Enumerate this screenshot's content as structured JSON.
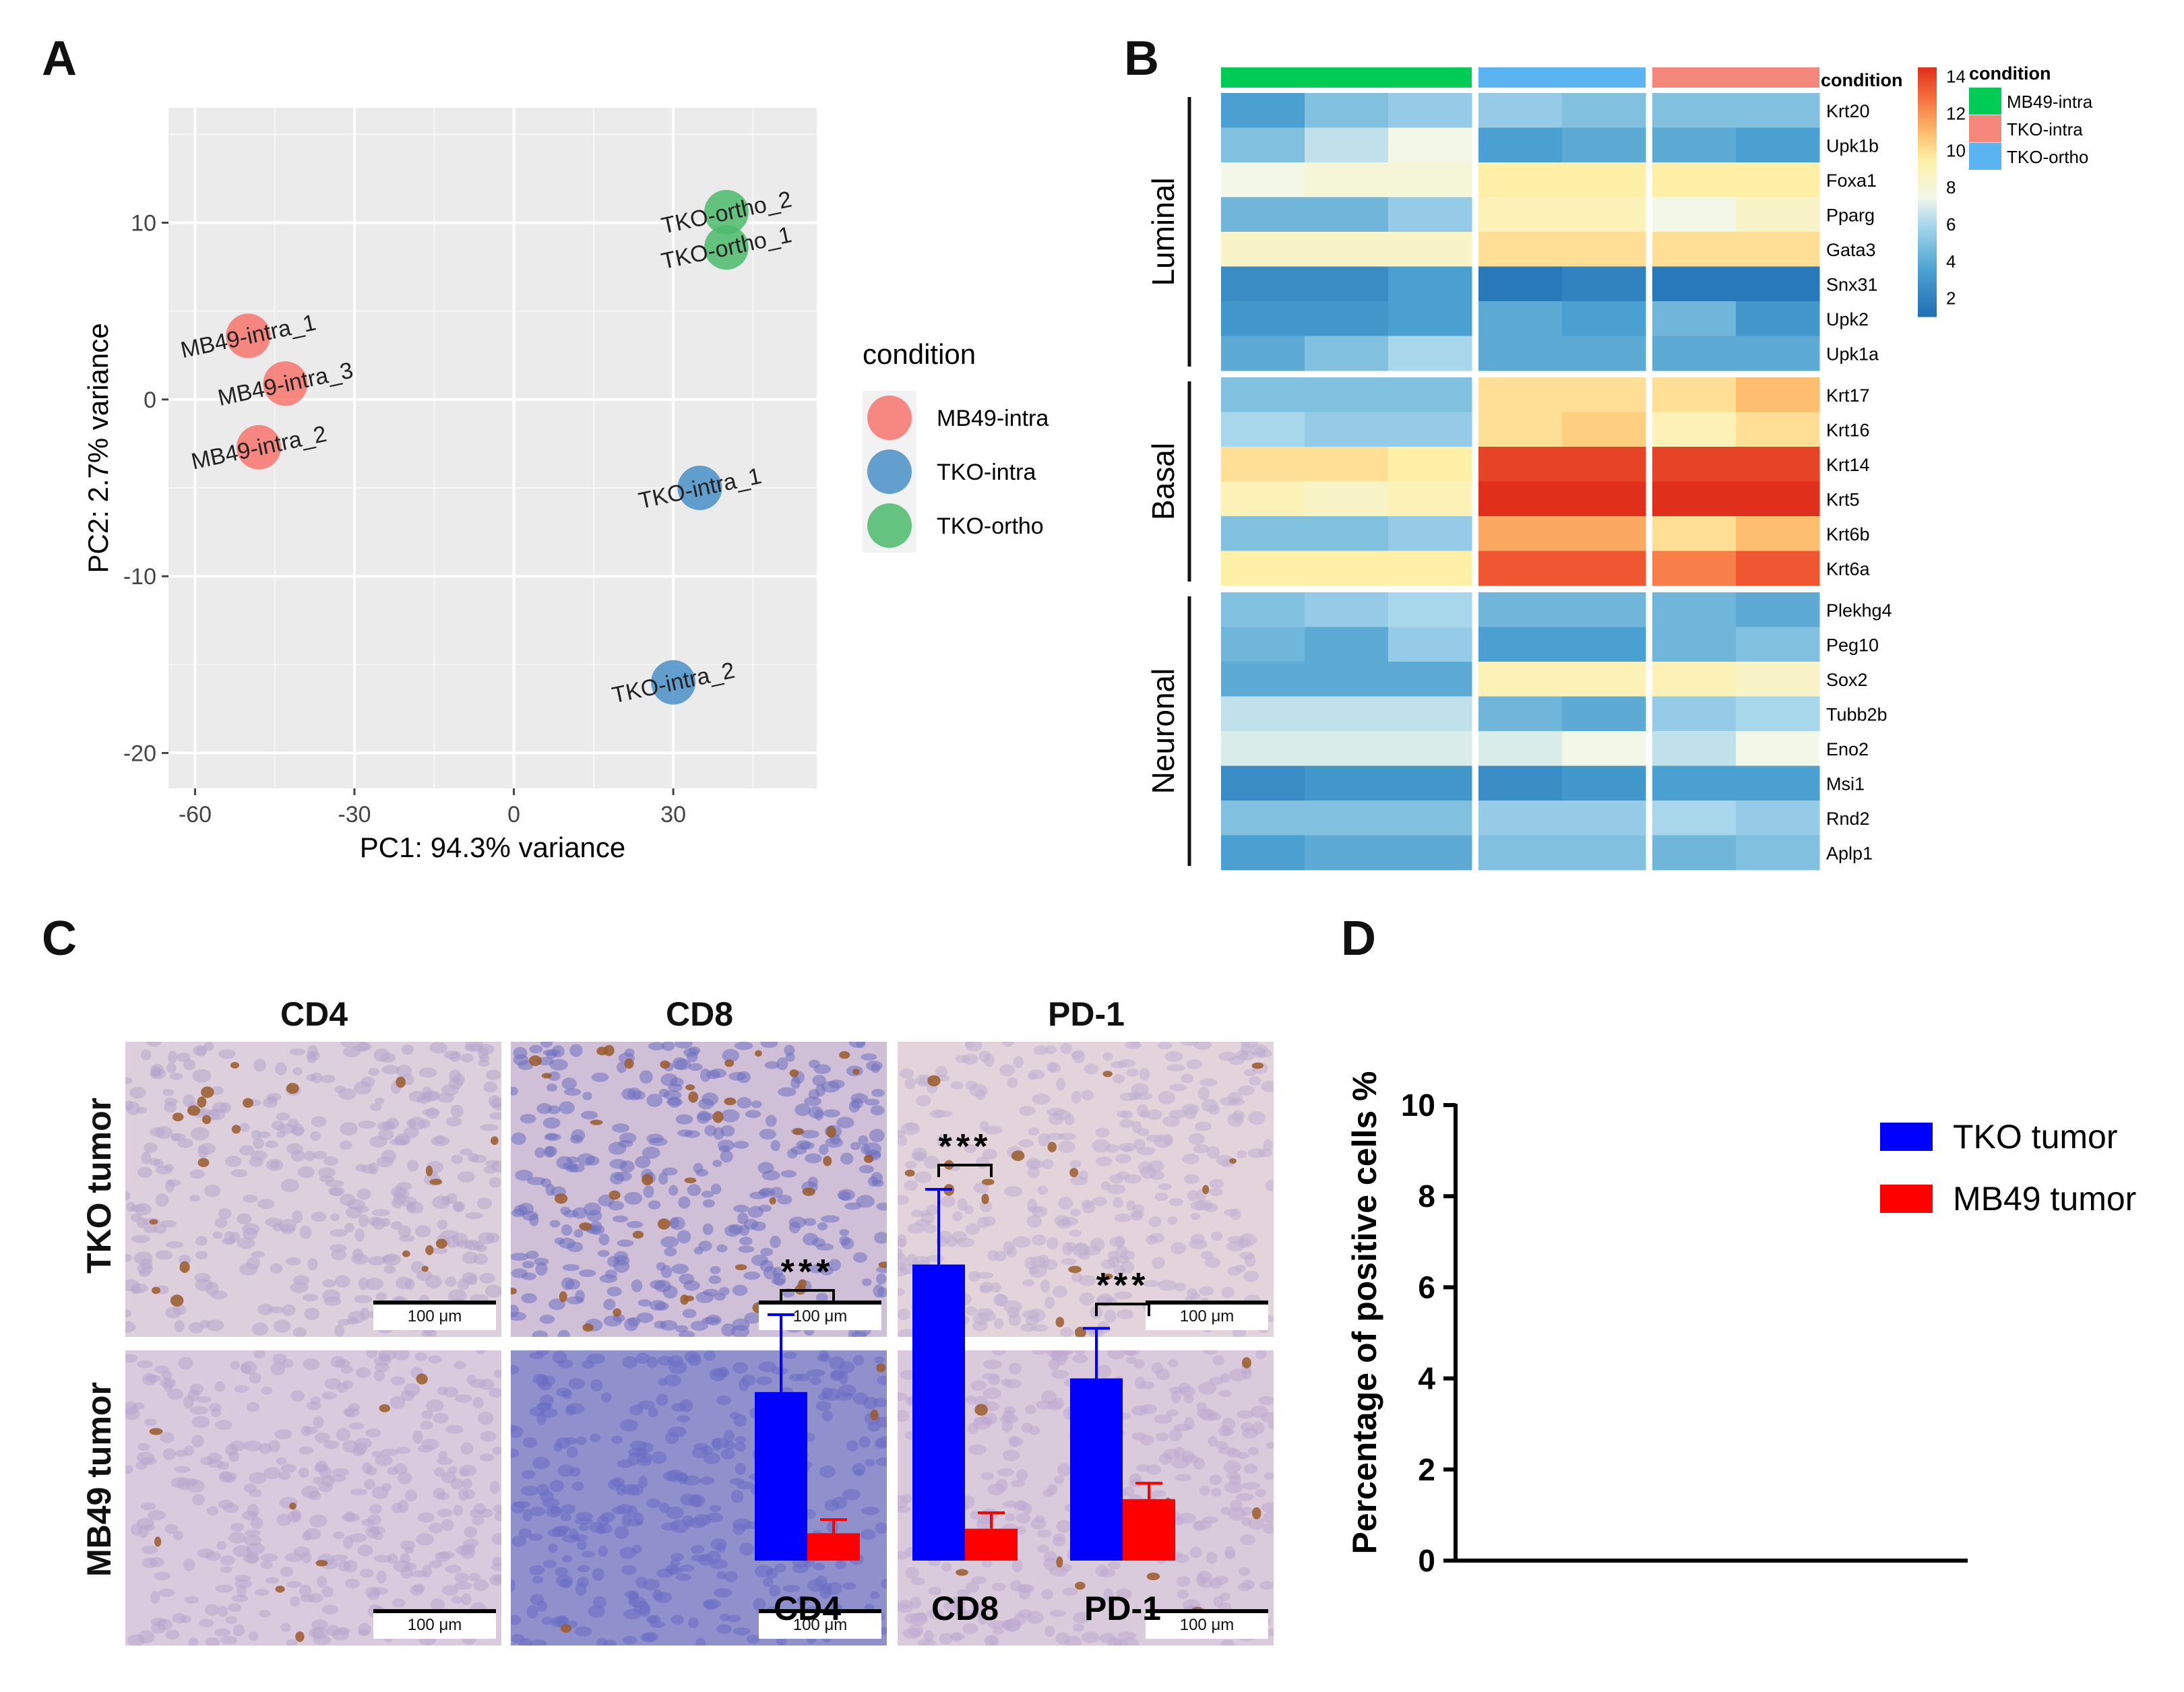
{
  "panels": {
    "a": "A",
    "b": "B",
    "c": "C",
    "d": "D"
  },
  "chart_data": [
    {
      "type": "scatter",
      "panel": "A",
      "xlabel": "PC1: 94.3% variance",
      "ylabel": "PC2: 2.7% variance",
      "xlim": [
        -65,
        57
      ],
      "ylim": [
        -22,
        16.5
      ],
      "xticks": [
        -60,
        -30,
        0,
        30
      ],
      "yticks": [
        10,
        0,
        -10,
        -20
      ],
      "grid": true,
      "legend_title": "condition",
      "legend": [
        {
          "label": "MB49-intra",
          "color": "#f8766d"
        },
        {
          "label": "TKO-intra",
          "color": "#4a90c8"
        },
        {
          "label": "TKO-ortho",
          "color": "#4cbb6c"
        }
      ],
      "points": [
        {
          "label": "MB49-intra_1",
          "group": "MB49-intra",
          "x": -50,
          "y": 3.6
        },
        {
          "label": "MB49-intra_3",
          "group": "MB49-intra",
          "x": -43,
          "y": 0.9
        },
        {
          "label": "MB49-intra_2",
          "group": "MB49-intra",
          "x": -48,
          "y": -2.7
        },
        {
          "label": "TKO-ortho_2",
          "group": "TKO-ortho",
          "x": 40,
          "y": 10.6
        },
        {
          "label": "TKO-ortho_1",
          "group": "TKO-ortho",
          "x": 40,
          "y": 8.6
        },
        {
          "label": "TKO-intra_1",
          "group": "TKO-intra",
          "x": 35,
          "y": -5
        },
        {
          "label": "TKO-intra_2",
          "group": "TKO-intra",
          "x": 30,
          "y": -16
        }
      ]
    },
    {
      "type": "heatmap",
      "panel": "B",
      "colorbar": {
        "min": 1,
        "max": 14.5,
        "ticks": [
          14,
          12,
          10,
          8,
          6,
          4,
          2
        ]
      },
      "annotation_title": "condition",
      "column_groups": [
        {
          "name": "MB49-intra",
          "color": "#00cc55",
          "n": 3
        },
        {
          "name": "TKO-ortho",
          "color": "#5ab4f2",
          "n": 2
        },
        {
          "name": "TKO-intra",
          "color": "#f4867a",
          "n": 2
        }
      ],
      "legend": [
        {
          "label": "MB49-intra",
          "color": "#00cc55"
        },
        {
          "label": "TKO-intra",
          "color": "#f4867a"
        },
        {
          "label": "TKO-ortho",
          "color": "#5ab4f2"
        }
      ],
      "row_groups": [
        {
          "name": "Luminal",
          "rows": [
            {
              "gene": "Krt20",
              "values": [
                3.5,
                5,
                5.5,
                5.5,
                5,
                5,
                5
              ]
            },
            {
              "gene": "Upk1b",
              "values": [
                5,
                6.5,
                7.5,
                3.5,
                4,
                4,
                3.5
              ]
            },
            {
              "gene": "Foxa1",
              "values": [
                7.5,
                8,
                8,
                9.5,
                9.5,
                9.5,
                9.5
              ]
            },
            {
              "gene": "Pparg",
              "values": [
                4.5,
                4.5,
                5.5,
                9,
                9,
                7.5,
                8.5
              ]
            },
            {
              "gene": "Gata3",
              "values": [
                8.5,
                8.5,
                8.5,
                10,
                10,
                10,
                10
              ]
            },
            {
              "gene": "Snx31",
              "values": [
                2.5,
                2.5,
                3.5,
                1.5,
                2,
                1.5,
                1.5
              ]
            },
            {
              "gene": "Upk2",
              "values": [
                3,
                3,
                3.5,
                4,
                3.5,
                4.5,
                3
              ]
            },
            {
              "gene": "Upk1a",
              "values": [
                4,
                5,
                6,
                4,
                4,
                4,
                4
              ]
            }
          ]
        },
        {
          "name": "Basal",
          "rows": [
            {
              "gene": "Krt17",
              "values": [
                5,
                5,
                5,
                10,
                10,
                10,
                11
              ]
            },
            {
              "gene": "Krt16",
              "values": [
                6,
                5.5,
                5.5,
                10,
                10.5,
                9,
                10
              ]
            },
            {
              "gene": "Krt14",
              "values": [
                10,
                10,
                9.5,
                14,
                14,
                14,
                14
              ]
            },
            {
              "gene": "Krt5",
              "values": [
                9,
                8.5,
                9,
                14.5,
                14.5,
                14.5,
                14.5
              ]
            },
            {
              "gene": "Krt6b",
              "values": [
                5,
                5,
                5.5,
                11.5,
                11.5,
                10,
                11
              ]
            },
            {
              "gene": "Krt6a",
              "values": [
                9.5,
                9.5,
                9.5,
                13.5,
                13.5,
                12.5,
                13.5
              ]
            }
          ]
        },
        {
          "name": "Neuronal",
          "rows": [
            {
              "gene": "Plekhg4",
              "values": [
                5,
                5.5,
                6,
                4.5,
                4.5,
                4.5,
                4
              ]
            },
            {
              "gene": "Peg10",
              "values": [
                4.5,
                4,
                5.5,
                3.5,
                3.5,
                4.5,
                5
              ]
            },
            {
              "gene": "Sox2",
              "values": [
                4,
                4,
                4,
                9,
                9,
                9,
                8.5
              ]
            },
            {
              "gene": "Tubb2b",
              "values": [
                6.5,
                6.5,
                6.5,
                4.5,
                4,
                5.5,
                6
              ]
            },
            {
              "gene": "Eno2",
              "values": [
                7,
                7,
                7,
                7,
                7.5,
                6.5,
                7.5
              ]
            },
            {
              "gene": "Msi1",
              "values": [
                2.5,
                3,
                3,
                2.5,
                3,
                3.5,
                3.5
              ]
            },
            {
              "gene": "Rnd2",
              "values": [
                5,
                5,
                5,
                5.5,
                5.5,
                6,
                5.5
              ]
            },
            {
              "gene": "Aplp1",
              "values": [
                3.5,
                4,
                4,
                5,
                5,
                4.5,
                5
              ]
            }
          ]
        }
      ]
    },
    {
      "type": "bar",
      "panel": "D",
      "ylabel": "Percentage of positive cells %",
      "ylim": [
        0,
        10
      ],
      "yticks": [
        0,
        2,
        4,
        6,
        8,
        10
      ],
      "categories": [
        "CD4",
        "CD8",
        "PD-1"
      ],
      "series": [
        {
          "name": "TKO tumor",
          "color": "#0000ff",
          "values": [
            3.7,
            6.5,
            4.0
          ],
          "errors": [
            1.7,
            1.65,
            1.1
          ]
        },
        {
          "name": "MB49 tumor",
          "color": "#ff0000",
          "values": [
            0.6,
            0.7,
            1.35
          ],
          "errors": [
            0.3,
            0.35,
            0.35
          ]
        }
      ],
      "significance": [
        "***",
        "***",
        "***"
      ],
      "legend_position": "top-right"
    }
  ],
  "ihc": {
    "columns": [
      "CD4",
      "CD8",
      "PD-1"
    ],
    "rows": [
      "TKO tumor",
      "MB49 tumor"
    ],
    "scalebar_label": "100 μm"
  }
}
